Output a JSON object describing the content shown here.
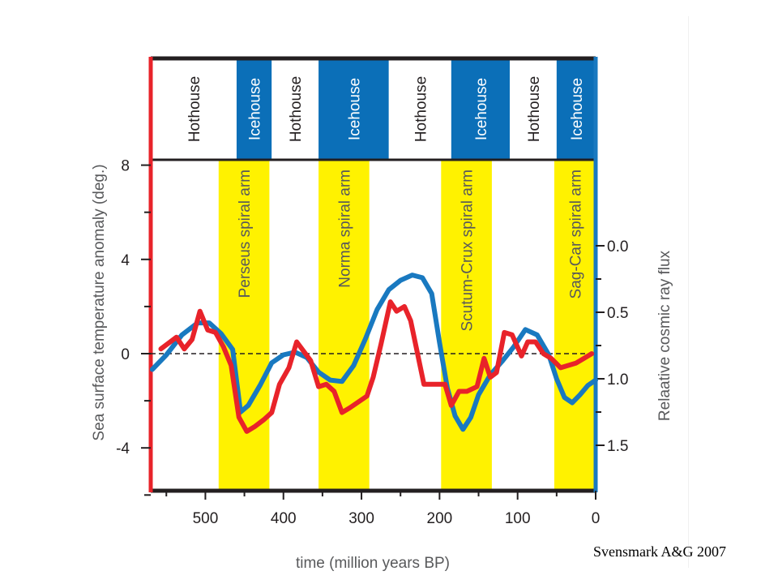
{
  "chart_data": {
    "type": "line",
    "title": "",
    "xlabel": "time (million years BP)",
    "ylabel": "Sea surface temperature anomaly (deg.)",
    "y2label": "Relaative cosmic ray flux",
    "xlim": [
      570,
      0
    ],
    "ylim": [
      -6,
      8
    ],
    "y2lim": [
      0.0,
      1.5
    ],
    "x_ticks": [
      500,
      400,
      300,
      200,
      100,
      0
    ],
    "y_ticks": [
      8,
      4,
      0,
      -4
    ],
    "y2_ticks": [
      "0.0",
      "0.5",
      "1.0",
      "1.5"
    ],
    "zero_line": "dashed",
    "climate_bands": [
      {
        "label": "Hothouse",
        "from": 570,
        "to": 460,
        "color": "#ffffff"
      },
      {
        "label": "Icehouse",
        "from": 460,
        "to": 415,
        "color": "#0b6fb8"
      },
      {
        "label": "Hothouse",
        "from": 415,
        "to": 355,
        "color": "#ffffff"
      },
      {
        "label": "Icehouse",
        "from": 355,
        "to": 265,
        "color": "#0b6fb8"
      },
      {
        "label": "Hothouse",
        "from": 265,
        "to": 185,
        "color": "#ffffff"
      },
      {
        "label": "Icehouse",
        "from": 185,
        "to": 110,
        "color": "#0b6fb8"
      },
      {
        "label": "Hothouse",
        "from": 110,
        "to": 50,
        "color": "#ffffff"
      },
      {
        "label": "Icehouse",
        "from": 50,
        "to": 0,
        "color": "#0b6fb8"
      }
    ],
    "spiral_arms": [
      {
        "label": "Perseus spiral arm",
        "from": 483,
        "to": 418
      },
      {
        "label": "Norma spiral arm",
        "from": 355,
        "to": 290
      },
      {
        "label": "Scutum-Crux spiral arm",
        "from": 198,
        "to": 133
      },
      {
        "label": "Sag-Car spiral arm",
        "from": 53,
        "to": 0
      }
    ],
    "series": [
      {
        "axis": "left",
        "color": "#e8232a",
        "x": [
          557,
          537,
          527,
          517,
          507,
          497,
          487,
          477,
          467,
          457,
          447,
          437,
          425,
          415,
          405,
          393,
          383,
          365,
          355,
          345,
          335,
          325,
          315,
          293,
          285,
          275,
          263,
          255,
          245,
          237,
          220,
          205,
          193,
          185,
          175,
          165,
          152,
          143,
          135,
          127,
          117,
          107,
          95,
          87,
          77,
          67,
          57,
          45,
          35,
          25,
          15,
          5
        ],
        "y": [
          0.2,
          0.7,
          0.2,
          0.6,
          1.8,
          1.0,
          0.9,
          0.3,
          -0.5,
          -2.7,
          -3.3,
          -3.1,
          -2.8,
          -2.5,
          -1.3,
          -0.6,
          0.5,
          -0.3,
          -1.4,
          -1.3,
          -1.6,
          -2.5,
          -2.3,
          -1.8,
          -1.0,
          0.4,
          2.2,
          1.8,
          2.0,
          1.4,
          -1.3,
          -1.3,
          -1.3,
          -2.2,
          -1.6,
          -1.6,
          -1.4,
          -0.2,
          -1.0,
          -0.8,
          0.9,
          0.8,
          -0.1,
          0.5,
          0.5,
          0.0,
          -0.2,
          -0.6,
          -0.5,
          -0.4,
          -0.2,
          0.0
        ]
      },
      {
        "axis": "right",
        "color": "#1979c0",
        "x": [
          568,
          550,
          530,
          510,
          495,
          480,
          465,
          455,
          445,
          430,
          415,
          400,
          385,
          370,
          355,
          340,
          325,
          310,
          295,
          280,
          265,
          250,
          235,
          222,
          210,
          200,
          190,
          180,
          170,
          160,
          150,
          135,
          120,
          105,
          90,
          75,
          60,
          50,
          40,
          30,
          20,
          10,
          0
        ],
        "y": [
          0.93,
          0.82,
          0.67,
          0.58,
          0.58,
          0.66,
          0.78,
          1.25,
          1.2,
          1.05,
          0.88,
          0.82,
          0.8,
          0.84,
          0.95,
          1.01,
          1.02,
          0.9,
          0.7,
          0.48,
          0.33,
          0.26,
          0.22,
          0.24,
          0.36,
          0.73,
          1.07,
          1.28,
          1.38,
          1.29,
          1.12,
          0.97,
          0.87,
          0.76,
          0.63,
          0.67,
          0.82,
          1.0,
          1.14,
          1.18,
          1.12,
          1.05,
          1.01
        ]
      }
    ]
  },
  "footer": {
    "credit": "Svensmark A&G 2007"
  }
}
